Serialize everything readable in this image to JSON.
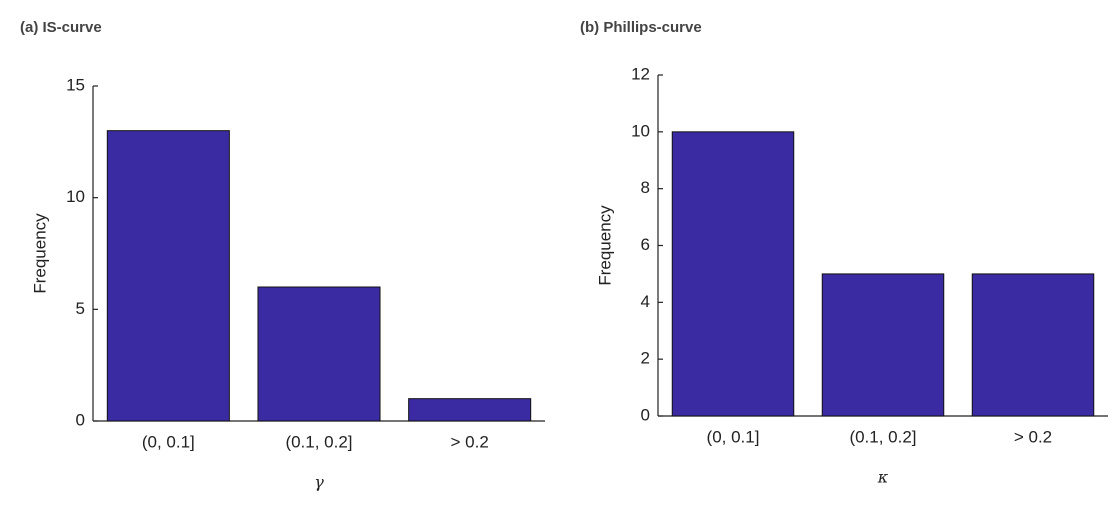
{
  "chart_data": [
    {
      "type": "bar",
      "title": "(a) IS-curve",
      "categories": [
        "(0, 0.1]",
        "(0.1, 0.2]",
        "> 0.2"
      ],
      "values": [
        13,
        6,
        1
      ],
      "color": "#3b2ba3",
      "xlabel": "γ",
      "ylabel": "Frequency",
      "ylim": [
        0,
        15
      ],
      "yticks": [
        0,
        5,
        10,
        15
      ]
    },
    {
      "type": "bar",
      "title": "(b) Phillips-curve",
      "categories": [
        "(0, 0.1]",
        "(0.1, 0.2]",
        "> 0.2"
      ],
      "values": [
        10,
        5,
        5
      ],
      "color": "#3b2ba3",
      "xlabel": "κ",
      "ylabel": "Frequency",
      "ylim": [
        0,
        12
      ],
      "yticks": [
        0,
        2,
        4,
        6,
        8,
        10,
        12
      ]
    }
  ]
}
